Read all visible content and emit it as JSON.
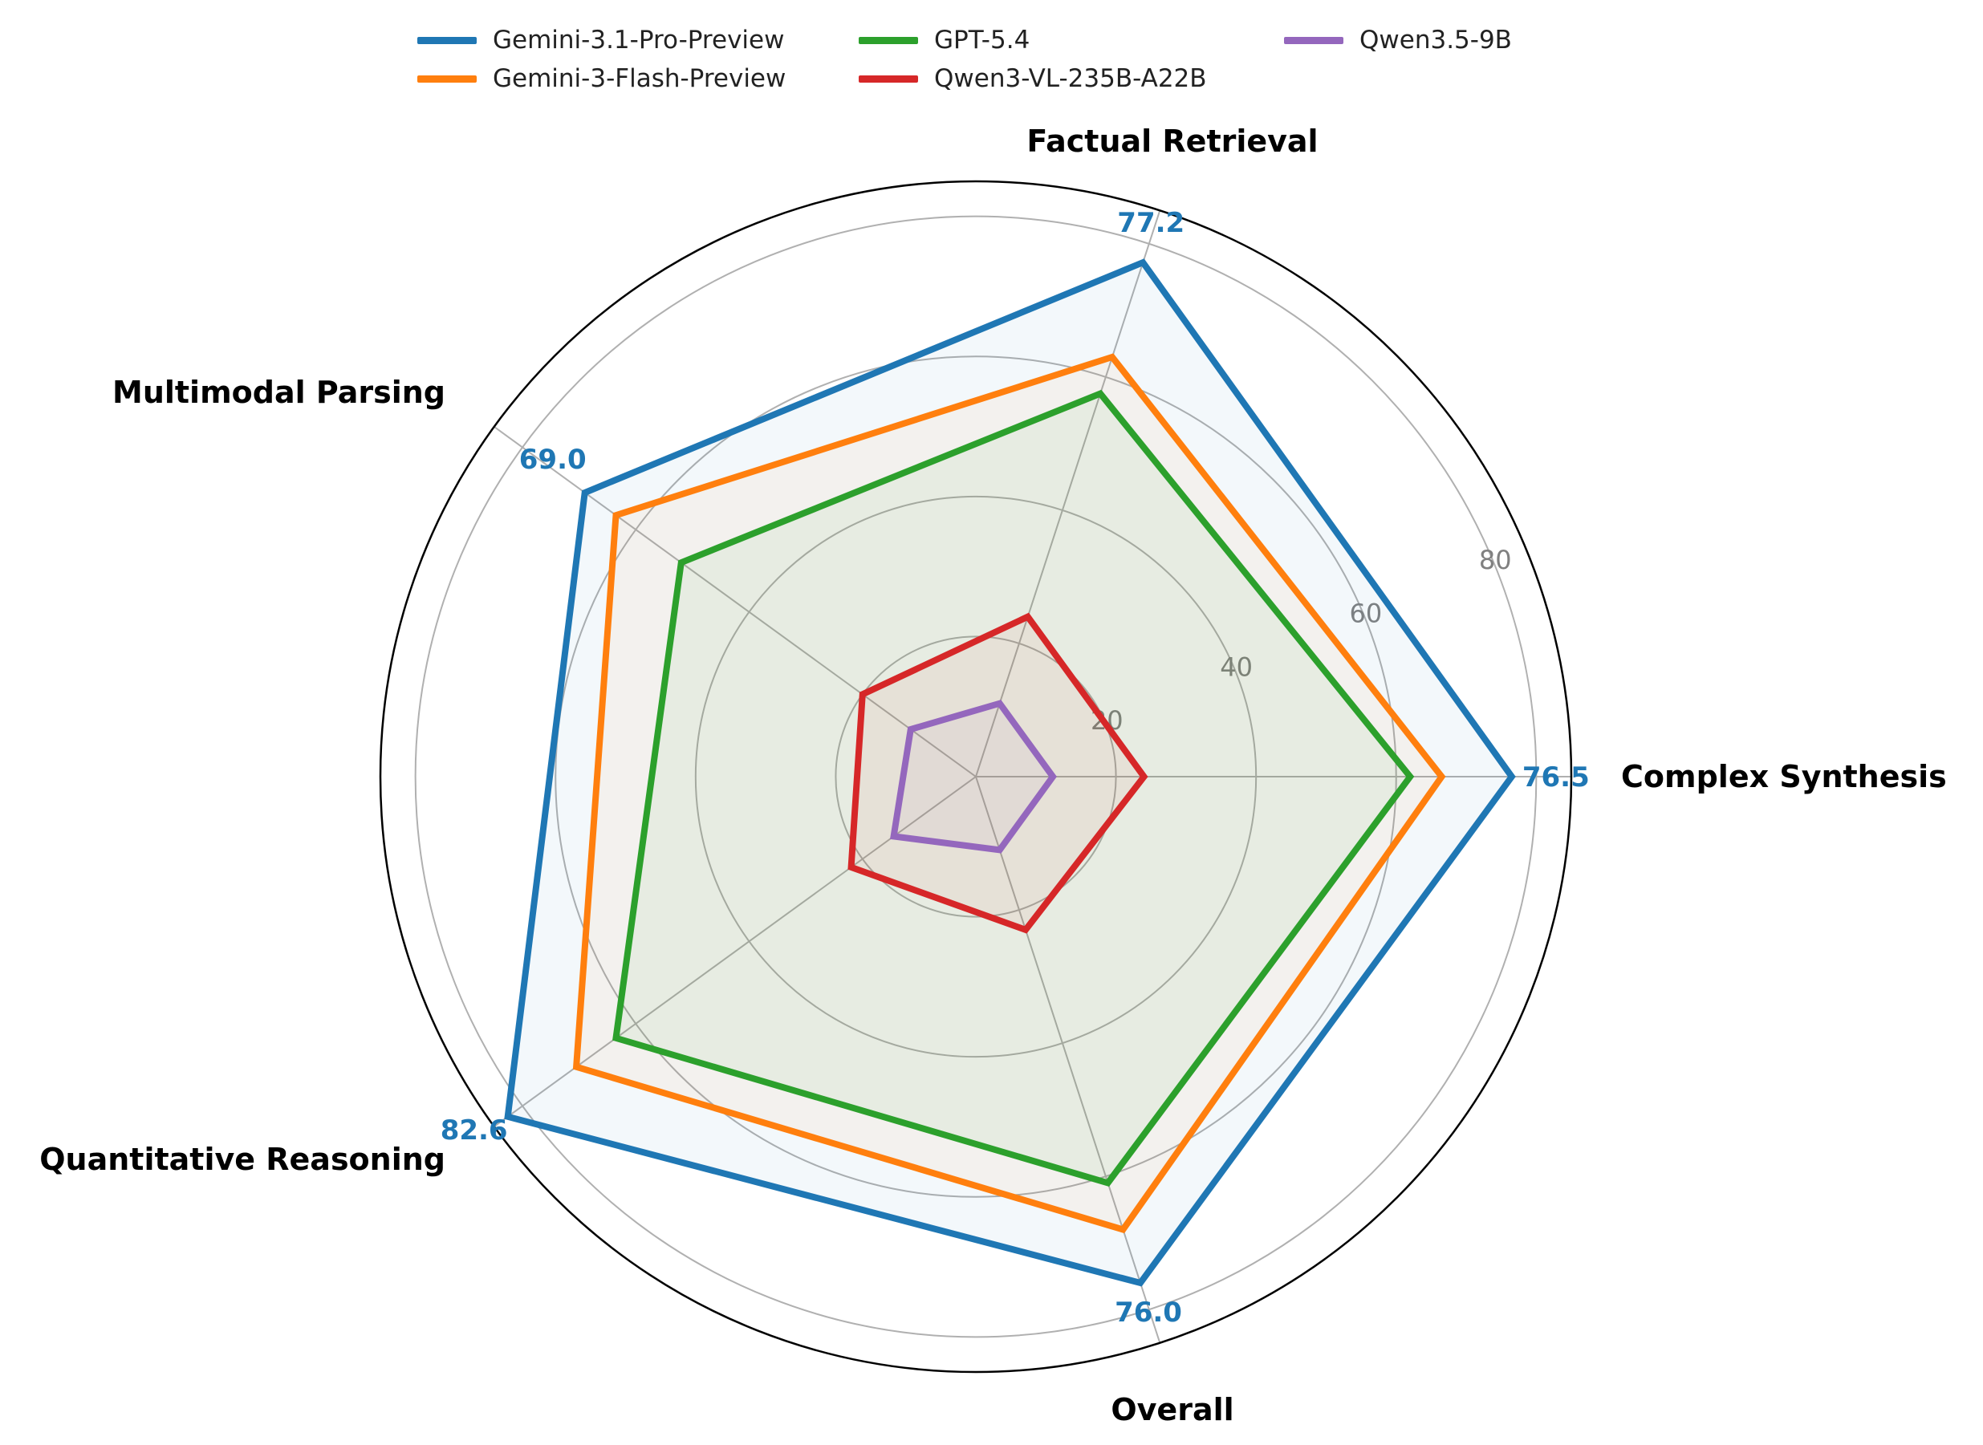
{
  "chart_data": {
    "type": "radar",
    "title": "",
    "categories": [
      "Complex Synthesis",
      "Factual Retrieval",
      "Multimodal Parsing",
      "Quantitative Reasoning",
      "Overall"
    ],
    "rlim": [
      0,
      85
    ],
    "rticks": [
      "20",
      "40",
      "60",
      "80"
    ],
    "grid": true,
    "legend_position": "top",
    "series": [
      {
        "name": "Gemini-3.1-Pro-Preview",
        "color": "#1f77b4",
        "values": [
          76.5,
          77.2,
          69.0,
          82.6,
          76.0
        ]
      },
      {
        "name": "Gemini-3-Flash-Preview",
        "color": "#ff7f0e",
        "values": [
          66.5,
          63.0,
          63.5,
          70.5,
          68.0
        ]
      },
      {
        "name": "GPT-5.4",
        "color": "#2ca02c",
        "values": [
          62.0,
          57.5,
          52.0,
          63.5,
          61.0
        ]
      },
      {
        "name": "Qwen3-VL-235B-A22B",
        "color": "#d62728",
        "values": [
          24.0,
          24.0,
          20.0,
          22.0,
          23.0
        ]
      },
      {
        "name": "Qwen3.5-9B",
        "color": "#9467bd",
        "values": [
          11.0,
          11.0,
          11.5,
          14.5,
          11.0
        ]
      }
    ],
    "peak_labels": [
      "76.5",
      "77.2",
      "69.0",
      "82.6",
      "76.0"
    ]
  }
}
